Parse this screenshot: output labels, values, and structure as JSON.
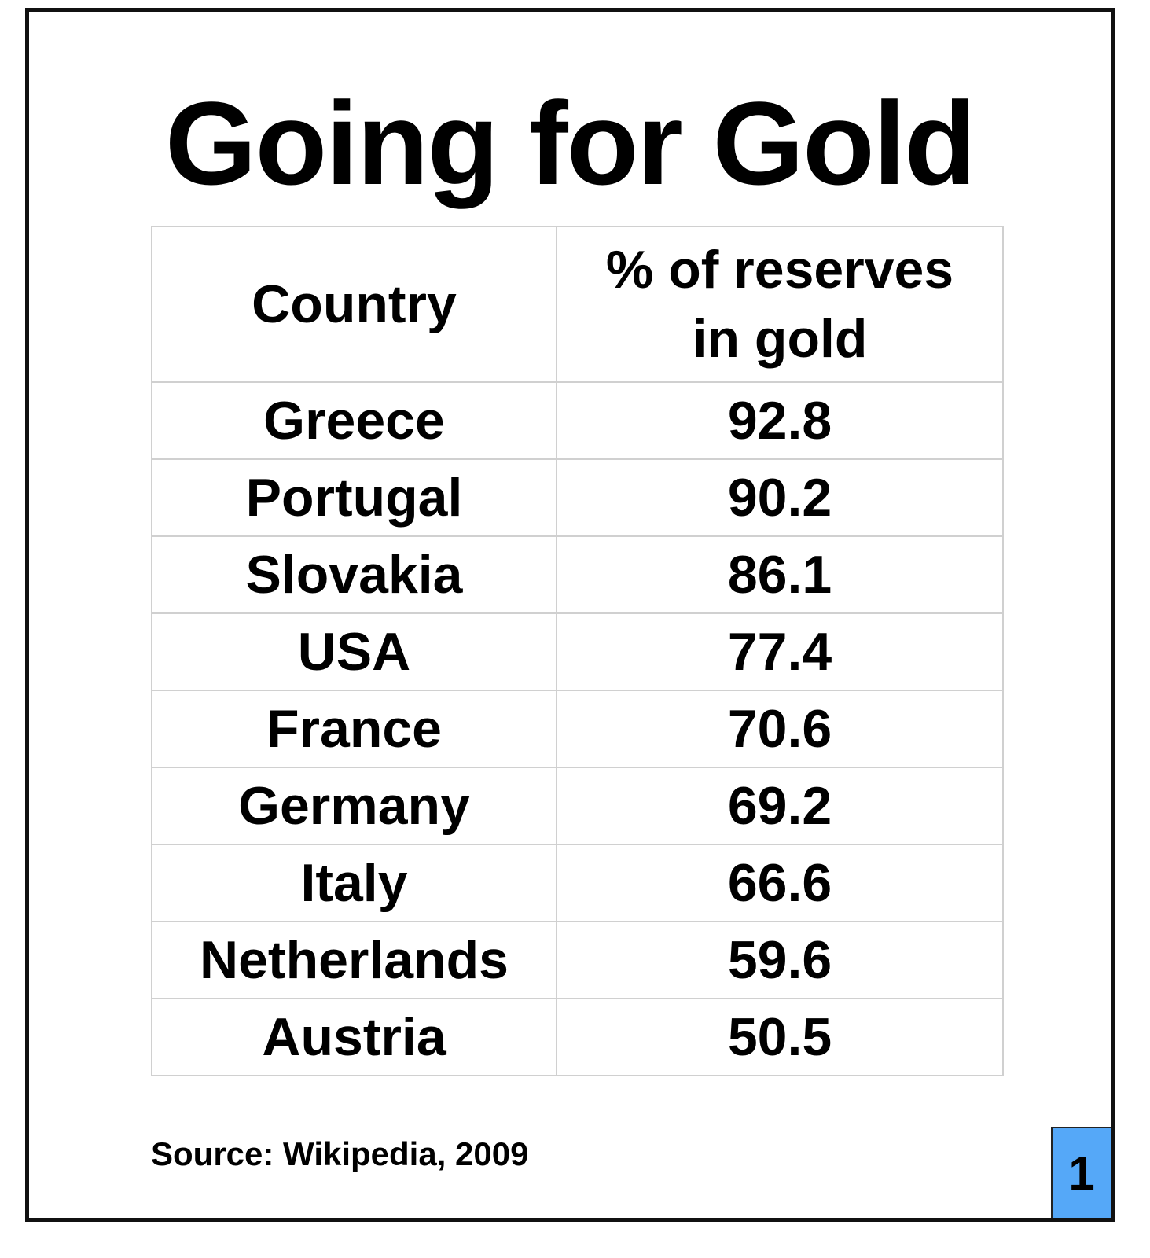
{
  "title": "Going for Gold",
  "chart_data": {
    "type": "table",
    "columns": [
      "Country",
      "% of reserves in gold"
    ],
    "header_lines": {
      "col1": [
        "Country"
      ],
      "col2": [
        "% of reserves",
        "in gold"
      ]
    },
    "rows": [
      [
        "Greece",
        "92.8"
      ],
      [
        "Portugal",
        "90.2"
      ],
      [
        "Slovakia",
        "86.1"
      ],
      [
        "USA",
        "77.4"
      ],
      [
        "France",
        "70.6"
      ],
      [
        "Germany",
        "69.2"
      ],
      [
        "Italy",
        "66.6"
      ],
      [
        "Netherlands",
        "59.6"
      ],
      [
        "Austria",
        "50.5"
      ]
    ]
  },
  "source": "Source: Wikipedia, 2009",
  "page_number": "1",
  "colors": {
    "badge_background": "#55a8f8",
    "frame_border": "#111111",
    "grid_lines": "#d0d0d0",
    "text": "#000000"
  }
}
